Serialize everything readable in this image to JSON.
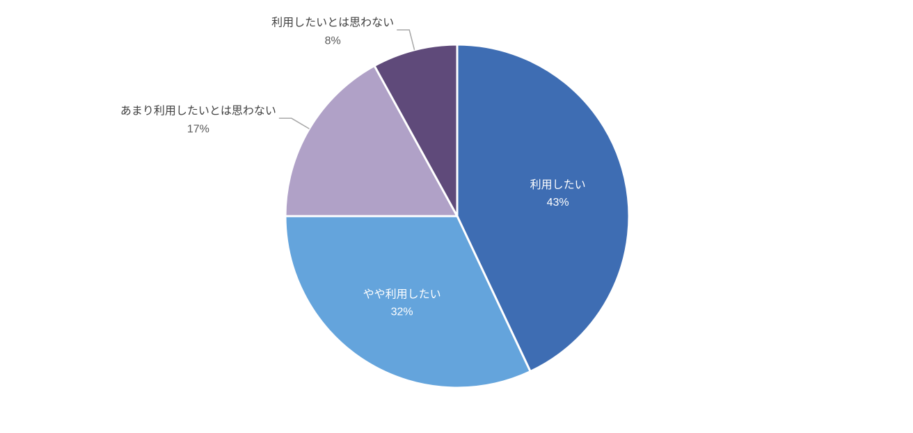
{
  "chart_data": {
    "type": "pie",
    "categories": [
      "利用したい",
      "やや利用したい",
      "あまり利用したいとは思わない",
      "利用したいとは思わない"
    ],
    "values": [
      43,
      32,
      17,
      8
    ],
    "value_labels": [
      "43%",
      "32%",
      "17%",
      "8%"
    ],
    "colors": [
      "#3e6db3",
      "#64a4dc",
      "#b0a1c7",
      "#5f4a7a"
    ],
    "start_angle": "top",
    "direction": "clockwise"
  }
}
